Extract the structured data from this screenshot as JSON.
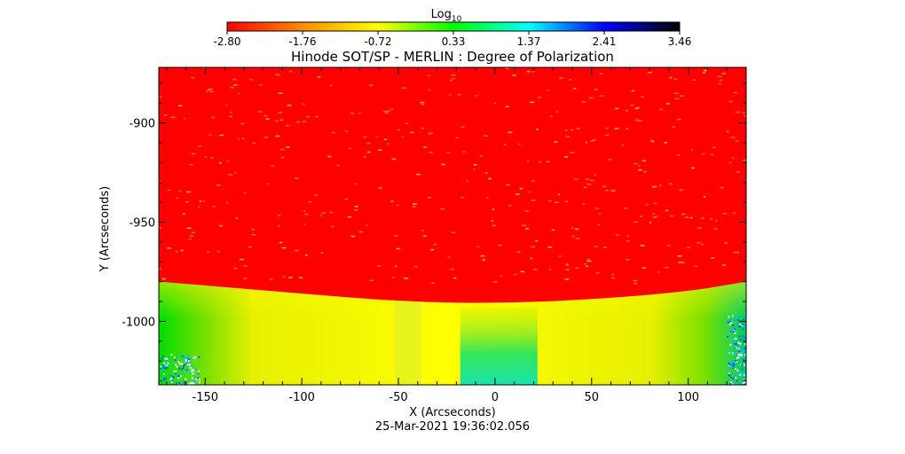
{
  "colorbar": {
    "label_main": "Log",
    "label_sub": "10",
    "ticks": [
      "-2.80",
      "-1.76",
      "-0.72",
      "0.33",
      "1.37",
      "2.41",
      "3.46"
    ],
    "range": [
      -2.8,
      3.46
    ],
    "colors": [
      "#ff0000",
      "#ff8c00",
      "#ffff00",
      "#00ff00",
      "#00ffff",
      "#0000ff",
      "#000000"
    ]
  },
  "chart_data": {
    "type": "heatmap",
    "title": "Hinode SOT/SP - MERLIN : Degree of Polarization",
    "xlabel": "X (Arcseconds)",
    "ylabel": "Y (Arcseconds)",
    "xlim": [
      -174,
      130
    ],
    "ylim": [
      -1032,
      -872
    ],
    "x_ticks": [
      -150,
      -100,
      -50,
      0,
      50,
      100
    ],
    "x_tick_labels": [
      "-150",
      "-100",
      "-50",
      "0",
      "50",
      "100"
    ],
    "y_ticks": [
      -900,
      -950,
      -1000
    ],
    "y_tick_labels": [
      "-900",
      "-950",
      "-1000"
    ],
    "timestamp": "25-Mar-2021 19:36:02.056",
    "limb_y": [
      [
        -174,
        -980
      ],
      [
        -100,
        -986
      ],
      [
        -50,
        -990
      ],
      [
        0,
        -991
      ],
      [
        50,
        -989
      ],
      [
        100,
        -985
      ],
      [
        130,
        -980
      ]
    ],
    "regions": [
      {
        "name": "off-limb",
        "value": -2.8,
        "color": "#ff0000"
      },
      {
        "name": "disk",
        "value": -0.72,
        "color": "#ffff00"
      },
      {
        "name": "disk-edge-left",
        "value": 0.33,
        "color": "#00ff00"
      },
      {
        "name": "disk-edge-right",
        "value": 0.33,
        "color": "#00ff00"
      },
      {
        "name": "center-patch",
        "value": 0.33,
        "color": "#00ff80"
      }
    ]
  }
}
